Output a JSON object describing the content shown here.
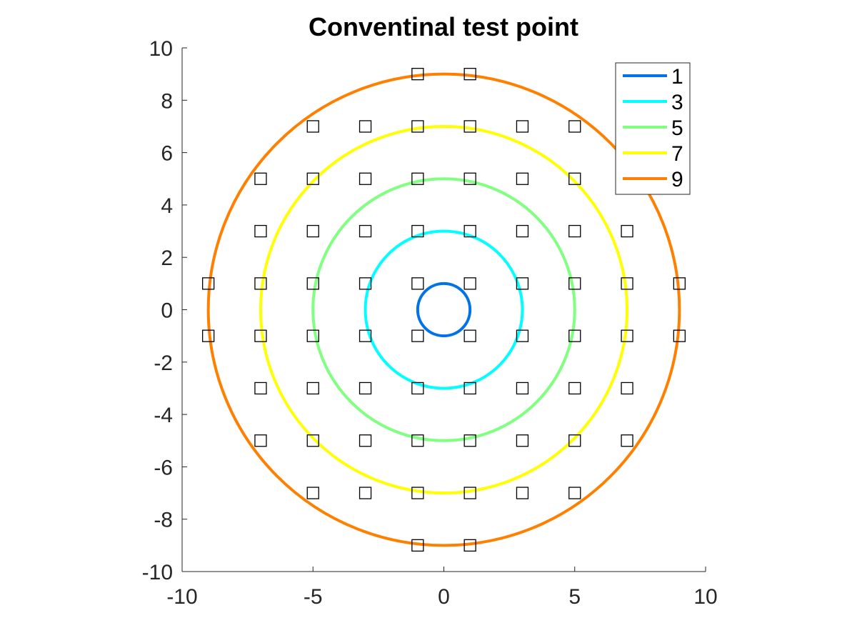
{
  "chart_data": {
    "type": "scatter",
    "title": "Conventinal test point",
    "xlabel": "",
    "ylabel": "",
    "xlim": [
      -10,
      10
    ],
    "ylim": [
      -10,
      10
    ],
    "xticks": [
      "-10",
      "-5",
      "0",
      "5",
      "10"
    ],
    "yticks": [
      "10",
      "8",
      "6",
      "4",
      "2",
      "0",
      "-2",
      "-4",
      "-6",
      "-8",
      "-10"
    ],
    "grid": false,
    "legend_position": "top-right",
    "circles": [
      {
        "name": "1",
        "radius": 1,
        "color": "#0072ea"
      },
      {
        "name": "3",
        "radius": 3,
        "color": "#00ffff"
      },
      {
        "name": "5",
        "radius": 5,
        "color": "#80ff80"
      },
      {
        "name": "7",
        "radius": 7,
        "color": "#ffff00"
      },
      {
        "name": "9",
        "radius": 9,
        "color": "#ff8000"
      }
    ],
    "test_points": {
      "marker": "square",
      "color": "#000000",
      "points": [
        [
          -1,
          9
        ],
        [
          1,
          9
        ],
        [
          -5,
          7
        ],
        [
          -3,
          7
        ],
        [
          -1,
          7
        ],
        [
          1,
          7
        ],
        [
          3,
          7
        ],
        [
          5,
          7
        ],
        [
          -7,
          5
        ],
        [
          -5,
          5
        ],
        [
          -3,
          5
        ],
        [
          -1,
          5
        ],
        [
          1,
          5
        ],
        [
          3,
          5
        ],
        [
          5,
          5
        ],
        [
          -7,
          3
        ],
        [
          -5,
          3
        ],
        [
          -3,
          3
        ],
        [
          -1,
          3
        ],
        [
          1,
          3
        ],
        [
          3,
          3
        ],
        [
          5,
          3
        ],
        [
          7,
          3
        ],
        [
          -9,
          1
        ],
        [
          -7,
          1
        ],
        [
          -5,
          1
        ],
        [
          -3,
          1
        ],
        [
          -1,
          1
        ],
        [
          1,
          1
        ],
        [
          3,
          1
        ],
        [
          5,
          1
        ],
        [
          7,
          1
        ],
        [
          9,
          1
        ],
        [
          -9,
          -1
        ],
        [
          -7,
          -1
        ],
        [
          -5,
          -1
        ],
        [
          -3,
          -1
        ],
        [
          -1,
          -1
        ],
        [
          1,
          -1
        ],
        [
          3,
          -1
        ],
        [
          5,
          -1
        ],
        [
          7,
          -1
        ],
        [
          9,
          -1
        ],
        [
          -7,
          -3
        ],
        [
          -5,
          -3
        ],
        [
          -3,
          -3
        ],
        [
          -1,
          -3
        ],
        [
          1,
          -3
        ],
        [
          3,
          -3
        ],
        [
          5,
          -3
        ],
        [
          7,
          -3
        ],
        [
          -7,
          -5
        ],
        [
          -5,
          -5
        ],
        [
          -3,
          -5
        ],
        [
          -1,
          -5
        ],
        [
          1,
          -5
        ],
        [
          3,
          -5
        ],
        [
          5,
          -5
        ],
        [
          7,
          -5
        ],
        [
          -5,
          -7
        ],
        [
          -3,
          -7
        ],
        [
          -1,
          -7
        ],
        [
          1,
          -7
        ],
        [
          3,
          -7
        ],
        [
          5,
          -7
        ],
        [
          -1,
          -9
        ],
        [
          1,
          -9
        ]
      ]
    }
  }
}
